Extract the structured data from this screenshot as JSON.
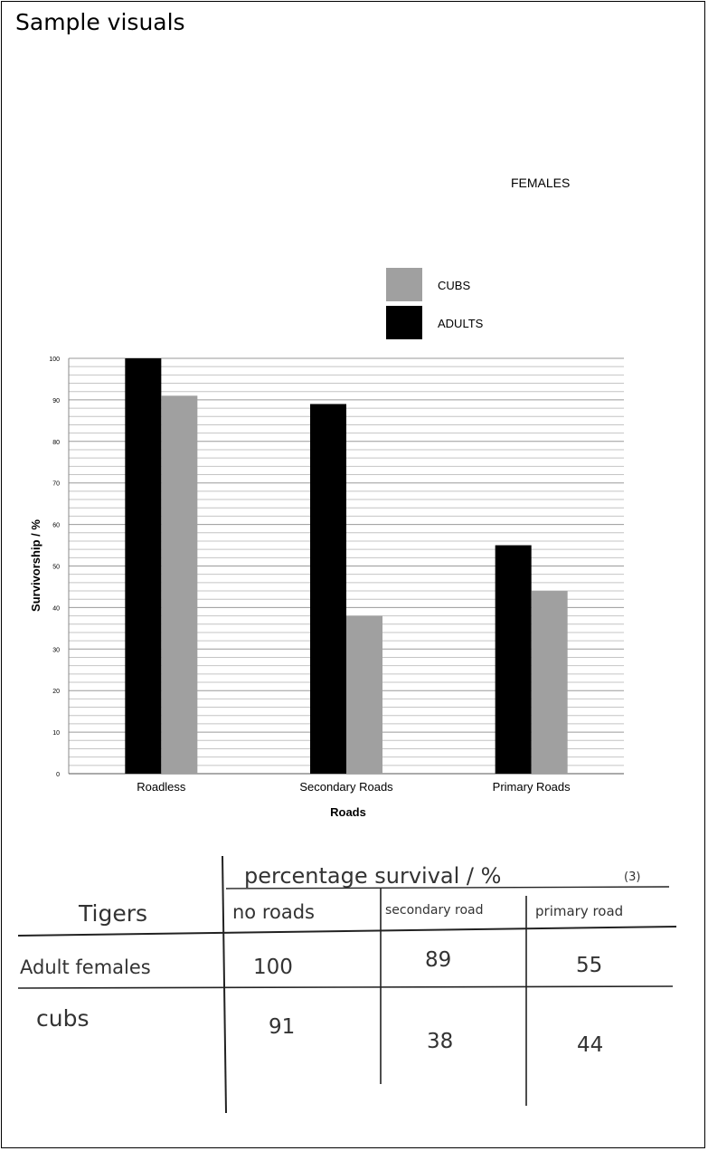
{
  "page": {
    "heading": "Sample visuals",
    "figure_label": "FEMALES"
  },
  "chart_data": {
    "type": "bar",
    "title": "",
    "xlabel": "Roads",
    "ylabel": "Survivorship / %",
    "categories": [
      "Roadless",
      "Secondary Roads",
      "Primary Roads"
    ],
    "series": [
      {
        "name": "ADULTS",
        "values": [
          100,
          89,
          55
        ],
        "color": "#000000"
      },
      {
        "name": "CUBS",
        "values": [
          91,
          38,
          44
        ],
        "color": "#a0a0a0"
      }
    ],
    "ylim": [
      0,
      100
    ],
    "y_ticks": [
      0,
      10,
      20,
      30,
      40,
      50,
      60,
      70,
      80,
      90,
      100
    ],
    "legend": {
      "placement": "top-center",
      "order": [
        "CUBS",
        "ADULTS"
      ]
    },
    "grid": true
  },
  "table": {
    "header_row": [
      "",
      "percentage survival / %",
      "(3)"
    ],
    "columns": [
      "Tigers",
      "no roads",
      "secondary road",
      "primary road"
    ],
    "rows": [
      [
        "Adult females",
        "100",
        "89",
        "55"
      ],
      [
        "cubs",
        "91",
        "38",
        "44"
      ]
    ]
  }
}
